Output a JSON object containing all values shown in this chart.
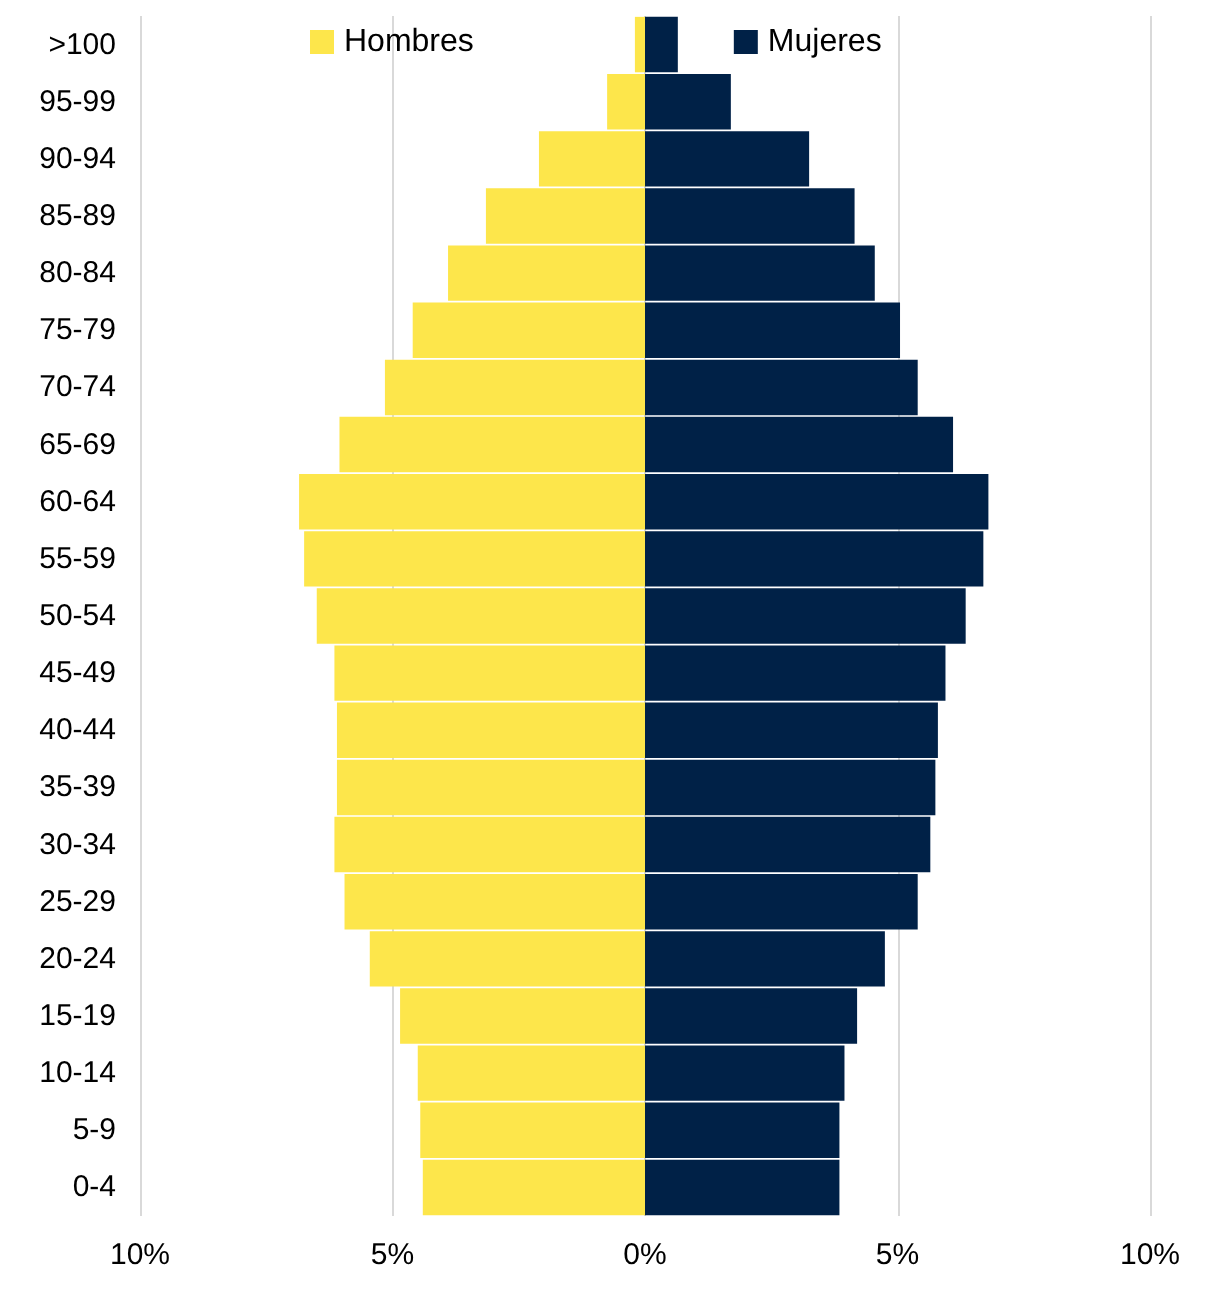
{
  "chart_data": {
    "type": "bar",
    "orientation": "horizontal",
    "stacked": true,
    "categories": [
      ">100",
      "95-99",
      "90-94",
      "85-89",
      "80-84",
      "75-79",
      "70-74",
      "65-69",
      "60-64",
      "55-59",
      "50-54",
      "45-49",
      "40-44",
      "35-39",
      "30-34",
      "25-29",
      "20-24",
      "15-19",
      "10-14",
      "5-9",
      "0-4"
    ],
    "series": [
      {
        "name": "Hombres",
        "color": "#fde64b",
        "values": [
          -0.2,
          -0.75,
          -2.1,
          -3.15,
          -3.9,
          -4.6,
          -5.15,
          -6.05,
          -6.85,
          -6.75,
          -6.5,
          -6.15,
          -6.1,
          -6.1,
          -6.15,
          -5.95,
          -5.45,
          -4.85,
          -4.5,
          -4.45,
          -4.4
        ]
      },
      {
        "name": "Mujeres",
        "color": "#002147",
        "values": [
          0.65,
          1.7,
          3.25,
          4.15,
          4.55,
          5.05,
          5.4,
          6.1,
          6.8,
          6.7,
          6.35,
          5.95,
          5.8,
          5.75,
          5.65,
          5.4,
          4.75,
          4.2,
          3.95,
          3.85,
          3.85
        ]
      }
    ],
    "xlim": [
      -10,
      10
    ],
    "xticks": [
      {
        "value": -10,
        "label": "10%"
      },
      {
        "value": -5,
        "label": "5%"
      },
      {
        "value": 0,
        "label": "0%"
      },
      {
        "value": 5,
        "label": "5%"
      },
      {
        "value": 10,
        "label": "10%"
      }
    ],
    "grid": "x",
    "legend": "top"
  }
}
